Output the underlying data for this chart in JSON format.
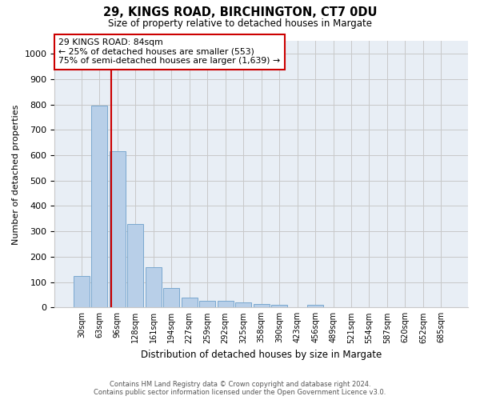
{
  "title1": "29, KINGS ROAD, BIRCHINGTON, CT7 0DU",
  "title2": "Size of property relative to detached houses in Margate",
  "xlabel": "Distribution of detached houses by size in Margate",
  "ylabel": "Number of detached properties",
  "categories": [
    "30sqm",
    "63sqm",
    "96sqm",
    "128sqm",
    "161sqm",
    "194sqm",
    "227sqm",
    "259sqm",
    "292sqm",
    "325sqm",
    "358sqm",
    "390sqm",
    "423sqm",
    "456sqm",
    "489sqm",
    "521sqm",
    "554sqm",
    "587sqm",
    "620sqm",
    "652sqm",
    "685sqm"
  ],
  "values": [
    125,
    795,
    615,
    330,
    160,
    78,
    40,
    27,
    25,
    20,
    15,
    10,
    0,
    10,
    0,
    0,
    0,
    0,
    0,
    0,
    0
  ],
  "bar_color": "#b8cfe8",
  "bar_edge_color": "#7aa8d0",
  "vline_x_index": 1.65,
  "marker_label1": "29 KINGS ROAD: 84sqm",
  "marker_label2": "← 25% of detached houses are smaller (553)",
  "marker_label3": "75% of semi-detached houses are larger (1,639) →",
  "annotation_box_color": "#ffffff",
  "annotation_box_edge": "#cc0000",
  "vline_color": "#cc0000",
  "ylim": [
    0,
    1050
  ],
  "yticks": [
    0,
    100,
    200,
    300,
    400,
    500,
    600,
    700,
    800,
    900,
    1000
  ],
  "grid_color": "#c8c8c8",
  "bg_color": "#e8eef5",
  "footer1": "Contains HM Land Registry data © Crown copyright and database right 2024.",
  "footer2": "Contains public sector information licensed under the Open Government Licence v3.0."
}
